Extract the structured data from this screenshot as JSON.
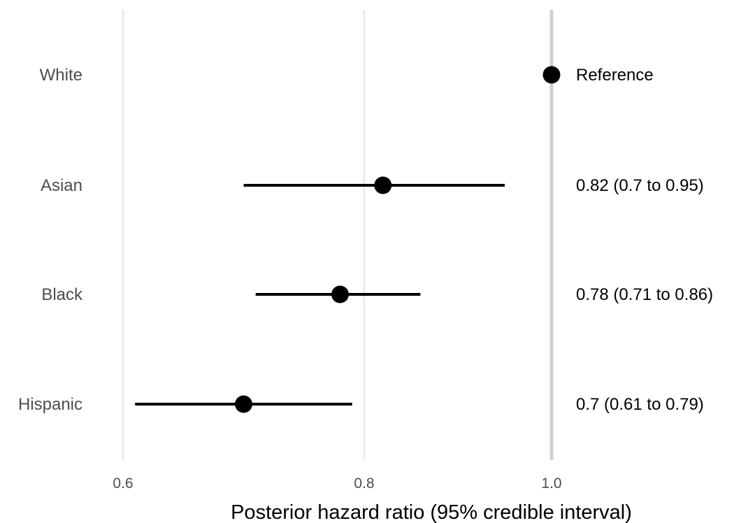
{
  "chart_data": {
    "type": "forest",
    "xlabel": "Posterior hazard ratio (95% credible interval)",
    "x_ticks": [
      "0.6",
      "0.8",
      "1.0"
    ],
    "x_tick_values": [
      0.6,
      0.8,
      1.0
    ],
    "xlim": [
      0.6,
      1.0
    ],
    "reference_line": 1.0,
    "grid": "vertical",
    "categories": [
      "White",
      "Asian",
      "Black",
      "Hispanic"
    ],
    "rows": [
      {
        "category": "White",
        "estimate": 1.0,
        "lower": null,
        "upper": null,
        "label": "Reference"
      },
      {
        "category": "Asian",
        "estimate": 0.82,
        "lower": 0.7,
        "upper": 0.95,
        "label": "0.82 (0.7 to 0.95)"
      },
      {
        "category": "Black",
        "estimate": 0.78,
        "lower": 0.71,
        "upper": 0.86,
        "label": "0.78 (0.71 to 0.86)"
      },
      {
        "category": "Hispanic",
        "estimate": 0.7,
        "lower": 0.61,
        "upper": 0.79,
        "label": "0.7 (0.61 to 0.79)"
      }
    ]
  }
}
